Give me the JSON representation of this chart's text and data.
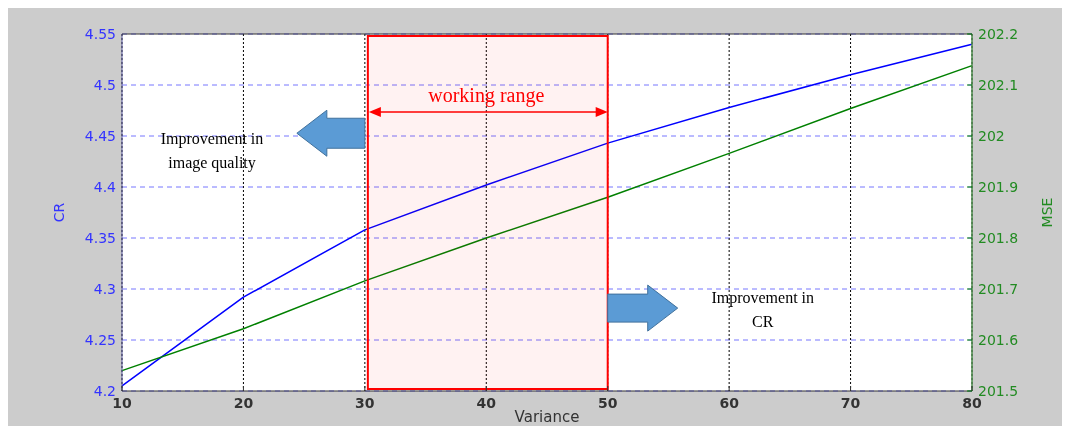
{
  "chart_data": {
    "type": "line",
    "xlabel": "Variance",
    "ylabel": "CR",
    "y2label": "MSE",
    "x": [
      10,
      20,
      30,
      40,
      50,
      60,
      70,
      80
    ],
    "series": [
      {
        "color": "#0000ff",
        "values": [
          4.205,
          4.292,
          4.358,
          4.402,
          4.443,
          4.478,
          4.51,
          4.54
        ]
      },
      {
        "color": "#008000",
        "axis": "y2",
        "values": [
          201.54,
          201.622,
          201.716,
          201.8,
          201.88,
          201.966,
          202.054,
          202.138
        ]
      }
    ],
    "xlim": [
      10,
      80
    ],
    "xticks": [
      10,
      20,
      30,
      40,
      50,
      60,
      70,
      80
    ],
    "ylim": [
      4.2,
      4.55
    ],
    "yticks": [
      4.2,
      4.25,
      4.3,
      4.35,
      4.4,
      4.45,
      4.5,
      4.55
    ],
    "y2lim": [
      201.5,
      202.2
    ],
    "y2ticks": [
      201.5,
      201.6,
      201.7,
      201.8,
      201.9,
      202,
      202.1,
      202.2
    ],
    "bands": [
      {
        "axis": "x",
        "from": 30,
        "to": 50,
        "label": "working range",
        "color": "#ff0000"
      }
    ],
    "annotations": [
      "Improvement in image quality",
      "Improvement in CR"
    ],
    "grid": true,
    "line_style": "solid",
    "marker": "none"
  }
}
